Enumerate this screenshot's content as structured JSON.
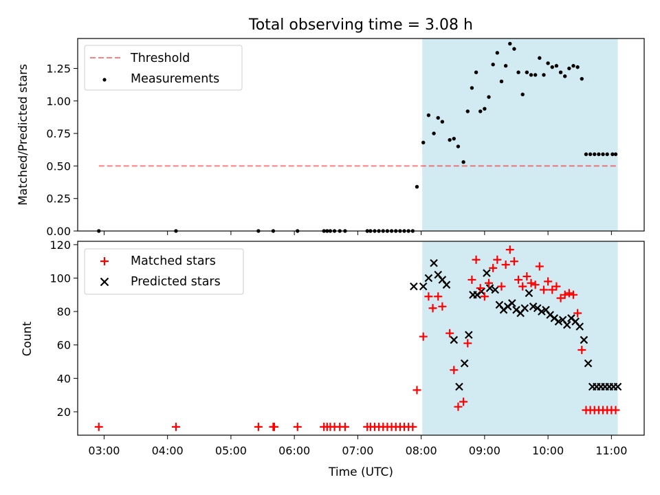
{
  "title": "Total observing time = 3.08 h",
  "colors": {
    "shade": "#add8e6",
    "threshold": "#ff0000",
    "measurements": "#000000",
    "matched": "#ff0000",
    "predicted": "#000000"
  },
  "chart_data": [
    {
      "type": "scatter",
      "panel": "top",
      "title": "Total observing time = 3.08 h",
      "xlabel": "",
      "ylabel": "Matched/Predicted stars",
      "xlim": [
        "02:35",
        "11:31"
      ],
      "ylim": [
        0,
        1.48
      ],
      "yticks": [
        "0.00",
        "0.25",
        "0.50",
        "0.75",
        "1.00",
        "1.25"
      ],
      "shaded_span": [
        "08:01",
        "11:06"
      ],
      "legend": "top-left",
      "grid": false,
      "series": [
        {
          "name": "Threshold",
          "kind": "dashed-line",
          "x": [
            "02:55",
            "11:06"
          ],
          "y": [
            0.5,
            0.5
          ]
        },
        {
          "name": "Measurements",
          "kind": "dot",
          "x": [
            "02:55",
            "04:08",
            "05:26",
            "05:40",
            "06:03",
            "06:28",
            "06:31",
            "06:34",
            "06:38",
            "06:43",
            "06:48",
            "07:09",
            "07:12",
            "07:16",
            "07:20",
            "07:24",
            "07:28",
            "07:32",
            "07:36",
            "07:40",
            "07:44",
            "07:48",
            "07:52",
            "07:56",
            "08:02",
            "08:07",
            "08:12",
            "08:16",
            "08:20",
            "08:27",
            "08:31",
            "08:35",
            "08:40",
            "08:44",
            "08:48",
            "08:52",
            "08:56",
            "09:00",
            "09:04",
            "09:08",
            "09:12",
            "09:16",
            "09:20",
            "09:24",
            "09:28",
            "09:32",
            "09:36",
            "09:40",
            "09:44",
            "09:48",
            "09:52",
            "09:56",
            "10:00",
            "10:04",
            "10:08",
            "10:12",
            "10:16",
            "10:20",
            "10:24",
            "10:28",
            "10:32",
            "10:36",
            "10:40",
            "10:44",
            "10:48",
            "10:52",
            "10:56",
            "11:01",
            "11:04"
          ],
          "y": [
            0,
            0,
            0,
            0,
            0,
            0,
            0,
            0,
            0,
            0,
            0,
            0,
            0,
            0,
            0,
            0,
            0,
            0,
            0,
            0,
            0,
            0,
            0,
            0.34,
            0.68,
            0.89,
            0.75,
            0.87,
            0.84,
            0.7,
            0.71,
            0.65,
            0.53,
            0.92,
            1.1,
            1.22,
            0.92,
            0.94,
            1.03,
            1.28,
            1.37,
            1.15,
            1.27,
            1.44,
            1.4,
            1.22,
            1.05,
            1.22,
            1.2,
            1.2,
            1.33,
            1.2,
            1.29,
            1.26,
            1.27,
            1.22,
            1.19,
            1.25,
            1.27,
            1.26,
            1.17,
            0.59,
            0.59,
            0.59,
            0.59,
            0.59,
            0.59,
            0.59,
            0.59
          ]
        }
      ]
    },
    {
      "type": "scatter",
      "panel": "bottom",
      "xlabel": "Time (UTC)",
      "ylabel": "Count",
      "xlim": [
        "02:35",
        "11:31"
      ],
      "xticks": [
        "03:00",
        "04:00",
        "05:00",
        "06:00",
        "07:00",
        "08:00",
        "09:00",
        "10:00",
        "11:00"
      ],
      "ylim": [
        6,
        122
      ],
      "yticks": [
        "20",
        "40",
        "60",
        "80",
        "100",
        "120"
      ],
      "shaded_span": [
        "08:01",
        "11:06"
      ],
      "legend": "top-left",
      "grid": false,
      "series": [
        {
          "name": "Matched stars",
          "kind": "plus",
          "x": [
            "02:55",
            "04:08",
            "05:26",
            "05:40",
            "05:41",
            "06:03",
            "06:28",
            "06:31",
            "06:34",
            "06:38",
            "06:43",
            "06:48",
            "07:09",
            "07:12",
            "07:16",
            "07:20",
            "07:24",
            "07:28",
            "07:32",
            "07:36",
            "07:40",
            "07:44",
            "07:48",
            "07:52",
            "07:56",
            "08:02",
            "08:07",
            "08:11",
            "08:16",
            "08:20",
            "08:27",
            "08:31",
            "08:35",
            "08:40",
            "08:44",
            "08:48",
            "08:52",
            "08:56",
            "09:00",
            "09:04",
            "09:08",
            "09:12",
            "09:16",
            "09:20",
            "09:24",
            "09:28",
            "09:32",
            "09:36",
            "09:40",
            "09:44",
            "09:48",
            "09:52",
            "09:56",
            "10:00",
            "10:04",
            "10:08",
            "10:12",
            "10:16",
            "10:20",
            "10:24",
            "10:28",
            "10:32",
            "10:36",
            "10:40",
            "10:44",
            "10:48",
            "10:52",
            "10:56",
            "11:00",
            "11:04"
          ],
          "y": [
            11,
            11,
            11,
            11,
            11,
            11,
            11,
            11,
            11,
            11,
            11,
            11,
            11,
            11,
            11,
            11,
            11,
            11,
            11,
            11,
            11,
            11,
            11,
            11,
            33,
            65,
            89,
            82,
            89,
            83,
            67,
            45,
            23,
            26,
            61,
            99,
            111,
            94,
            89,
            97,
            106,
            111,
            95,
            108,
            117,
            110,
            99,
            95,
            101,
            97,
            96,
            107,
            93,
            98,
            93,
            95,
            88,
            90,
            91,
            90,
            79,
            57,
            21,
            21,
            21,
            21,
            21,
            21,
            21,
            21
          ]
        },
        {
          "name": "Predicted stars",
          "kind": "x",
          "x": [
            "07:53",
            "08:02",
            "08:07",
            "08:12",
            "08:16",
            "08:20",
            "08:24",
            "08:31",
            "08:36",
            "08:41",
            "08:45",
            "08:49",
            "08:53",
            "08:57",
            "09:02",
            "09:05",
            "09:10",
            "09:14",
            "09:18",
            "09:22",
            "09:26",
            "09:30",
            "09:34",
            "09:38",
            "09:42",
            "09:46",
            "09:50",
            "09:54",
            "09:58",
            "10:02",
            "10:06",
            "10:10",
            "10:14",
            "10:18",
            "10:22",
            "10:26",
            "10:30",
            "10:34",
            "10:38",
            "10:42",
            "10:46",
            "10:50",
            "10:54",
            "10:58",
            "11:02",
            "11:06"
          ],
          "y": [
            95,
            95,
            100,
            109,
            102,
            99,
            96,
            63,
            35,
            49,
            66,
            90,
            90,
            92,
            103,
            94,
            93,
            84,
            81,
            83,
            85,
            81,
            79,
            82,
            91,
            83,
            82,
            80,
            81,
            78,
            76,
            74,
            75,
            72,
            76,
            74,
            71,
            63,
            49,
            35,
            35,
            35,
            35,
            35,
            35,
            35
          ]
        }
      ]
    }
  ]
}
